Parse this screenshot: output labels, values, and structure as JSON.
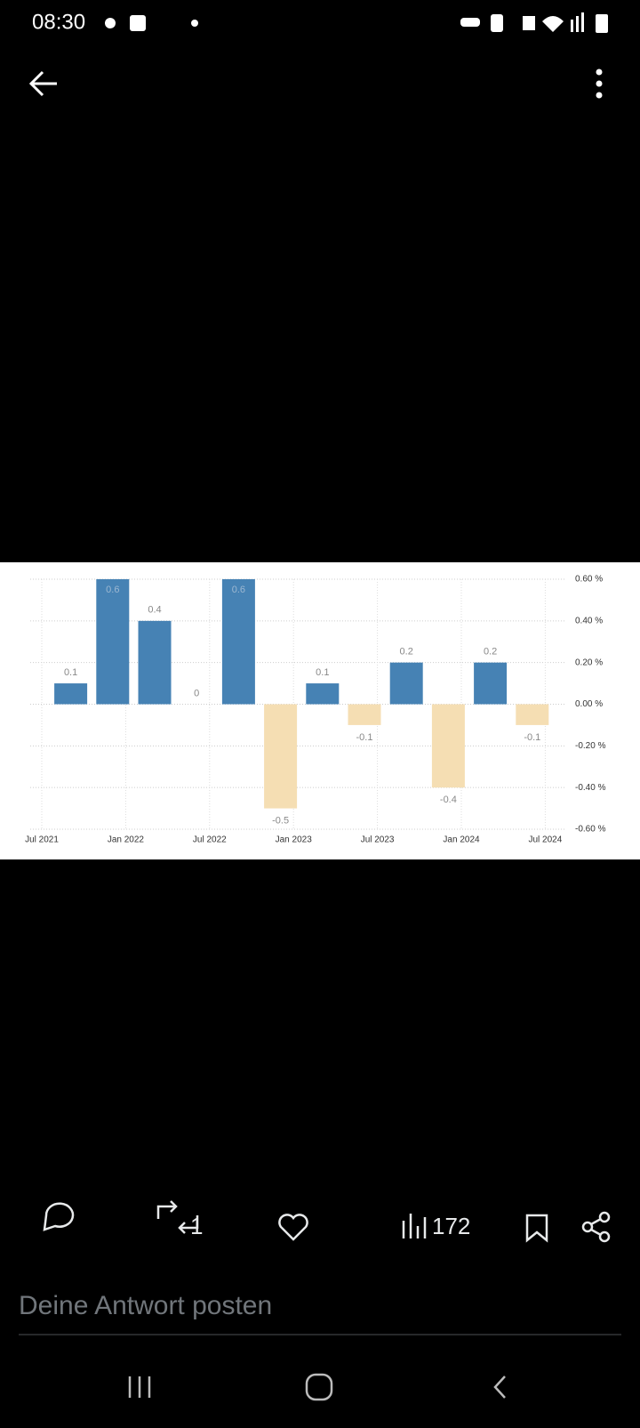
{
  "status_bar": {
    "time": "08:30"
  },
  "chart_data": {
    "type": "bar",
    "categories": [
      null,
      null,
      null,
      null,
      null,
      null,
      null,
      null,
      null,
      null,
      null,
      null
    ],
    "values": [
      0.1,
      0.6,
      0.4,
      0,
      0.6,
      -0.5,
      0.1,
      -0.1,
      0.2,
      -0.4,
      0.2,
      -0.1
    ],
    "color": "#4682b4",
    "negative_color": "#f5deb3",
    "xticks": [
      "Jul 2021",
      "Jan 2022",
      "Jul 2022",
      "Jan 2023",
      "Jul 2023",
      "Jan 2024",
      "Jul 2024"
    ],
    "ylim": [
      -0.6,
      0.6
    ],
    "yticks": [
      {
        "value": -0.6,
        "label": "-0.60 %"
      },
      {
        "value": -0.4,
        "label": "-0.40 %"
      },
      {
        "value": -0.2,
        "label": "-0.20 %"
      },
      {
        "value": 0,
        "label": "0.00 %"
      },
      {
        "value": 0.2,
        "label": "0.20 %"
      },
      {
        "value": 0.4,
        "label": "0.40 %"
      },
      {
        "value": 0.6,
        "label": "0.60 %"
      }
    ],
    "grid": true
  },
  "actions": {
    "reposts": 1,
    "views": 172
  },
  "reply": {
    "placeholder": "Deine Antwort posten"
  }
}
